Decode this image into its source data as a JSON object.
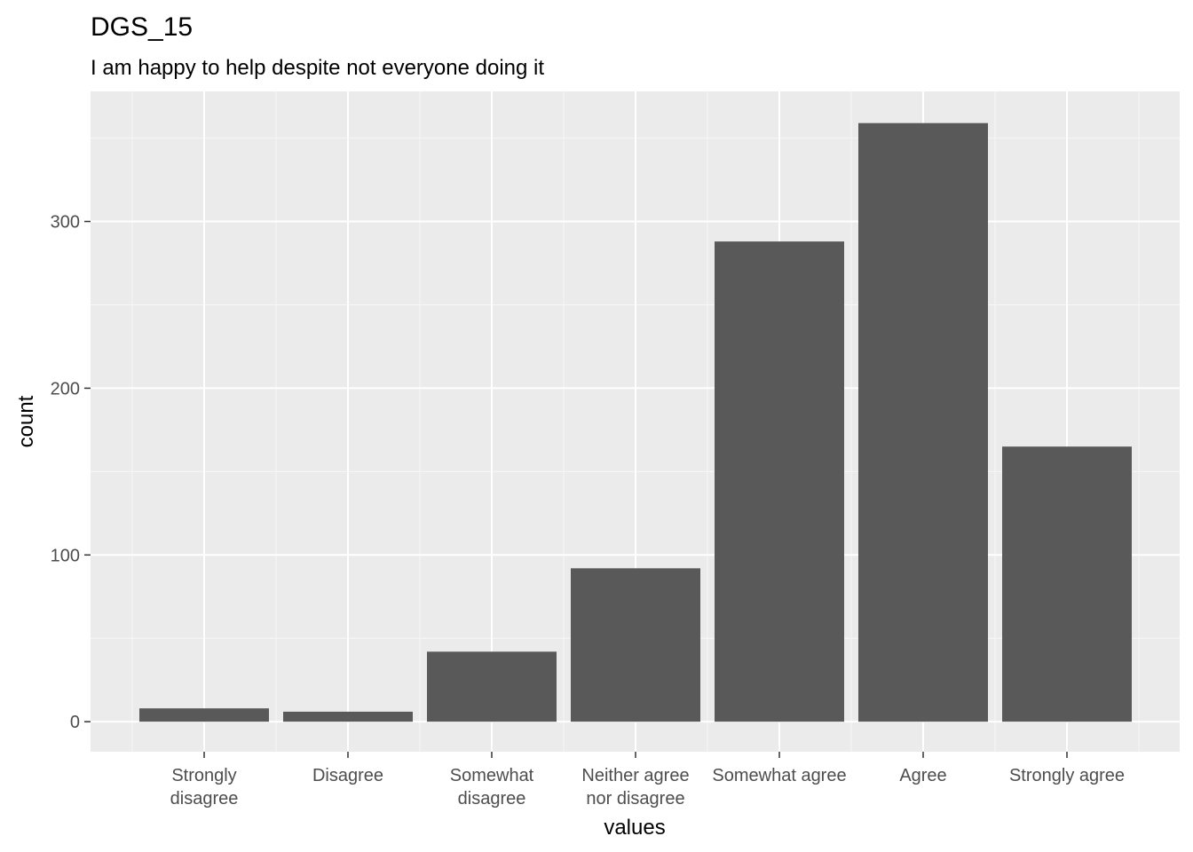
{
  "chart_data": {
    "type": "bar",
    "title": "DGS_15",
    "subtitle": "I am happy to help despite not everyone doing it",
    "xlabel": "values",
    "ylabel": "count",
    "categories": [
      [
        "Strongly",
        "disagree"
      ],
      [
        "Disagree"
      ],
      [
        "Somewhat",
        "disagree"
      ],
      [
        "Neither agree",
        "nor disagree"
      ],
      [
        "Somewhat agree"
      ],
      [
        "Agree"
      ],
      [
        "Strongly agree"
      ]
    ],
    "values": [
      8,
      6,
      42,
      92,
      288,
      359,
      165
    ],
    "yticks": [
      0,
      100,
      200,
      300
    ],
    "ylim": [
      -18,
      378
    ],
    "grid": true,
    "colors": {
      "bar": "#595959",
      "panel": "#ebebeb",
      "grid_major": "#ffffff",
      "grid_minor": "#f7f7f7",
      "tick": "#333333"
    }
  }
}
